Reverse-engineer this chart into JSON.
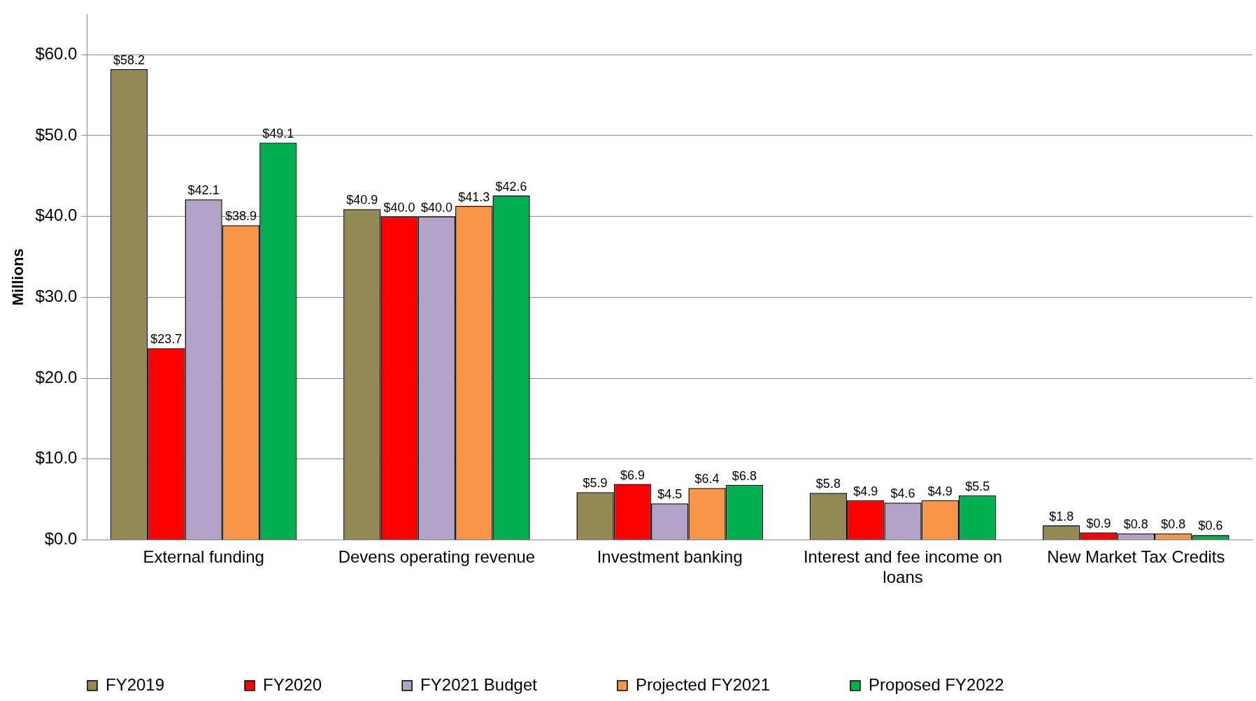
{
  "chart_data": {
    "type": "bar",
    "ylabel": "Millions",
    "categories": [
      "External funding",
      "Devens operating revenue",
      "Investment banking",
      "Interest and fee income on loans",
      "New Market Tax Credits"
    ],
    "series": [
      {
        "name": "FY2019",
        "color": "#938953",
        "values": [
          58.2,
          40.9,
          5.9,
          5.8,
          1.8
        ],
        "value_labels": [
          "$58.2",
          "$40.9",
          "$5.9",
          "$5.8",
          "$1.8"
        ]
      },
      {
        "name": "FY2020",
        "color": "#ff0000",
        "values": [
          23.7,
          40.0,
          6.9,
          4.9,
          0.9
        ],
        "value_labels": [
          "$23.7",
          "$40.0",
          "$6.9",
          "$4.9",
          "$0.9"
        ]
      },
      {
        "name": "FY2021 Budget",
        "color": "#b2a2c7",
        "values": [
          42.1,
          40.0,
          4.5,
          4.6,
          0.8
        ],
        "value_labels": [
          "$42.1",
          "$40.0",
          "$4.5",
          "$4.6",
          "$0.8"
        ]
      },
      {
        "name": "Projected FY2021",
        "color": "#f79646",
        "values": [
          38.9,
          41.3,
          6.4,
          4.9,
          0.8
        ],
        "value_labels": [
          "$38.9",
          "$41.3",
          "$6.4",
          "$4.9",
          "$0.8"
        ]
      },
      {
        "name": "Proposed FY2022",
        "color": "#00b050",
        "values": [
          49.1,
          42.6,
          6.8,
          5.5,
          0.6
        ],
        "value_labels": [
          "$49.1",
          "$42.6",
          "$6.8",
          "$5.5",
          "$0.6"
        ]
      }
    ],
    "ylim": [
      0,
      65
    ],
    "yticks": [
      {
        "value": 0,
        "label": "$0.0"
      },
      {
        "value": 10,
        "label": "$10.0"
      },
      {
        "value": 20,
        "label": "$20.0"
      },
      {
        "value": 30,
        "label": "$30.0"
      },
      {
        "value": 40,
        "label": "$40.0"
      },
      {
        "value": 50,
        "label": "$50.0"
      },
      {
        "value": 60,
        "label": "$60.0"
      }
    ],
    "grid": "y",
    "legend": "bottom"
  }
}
